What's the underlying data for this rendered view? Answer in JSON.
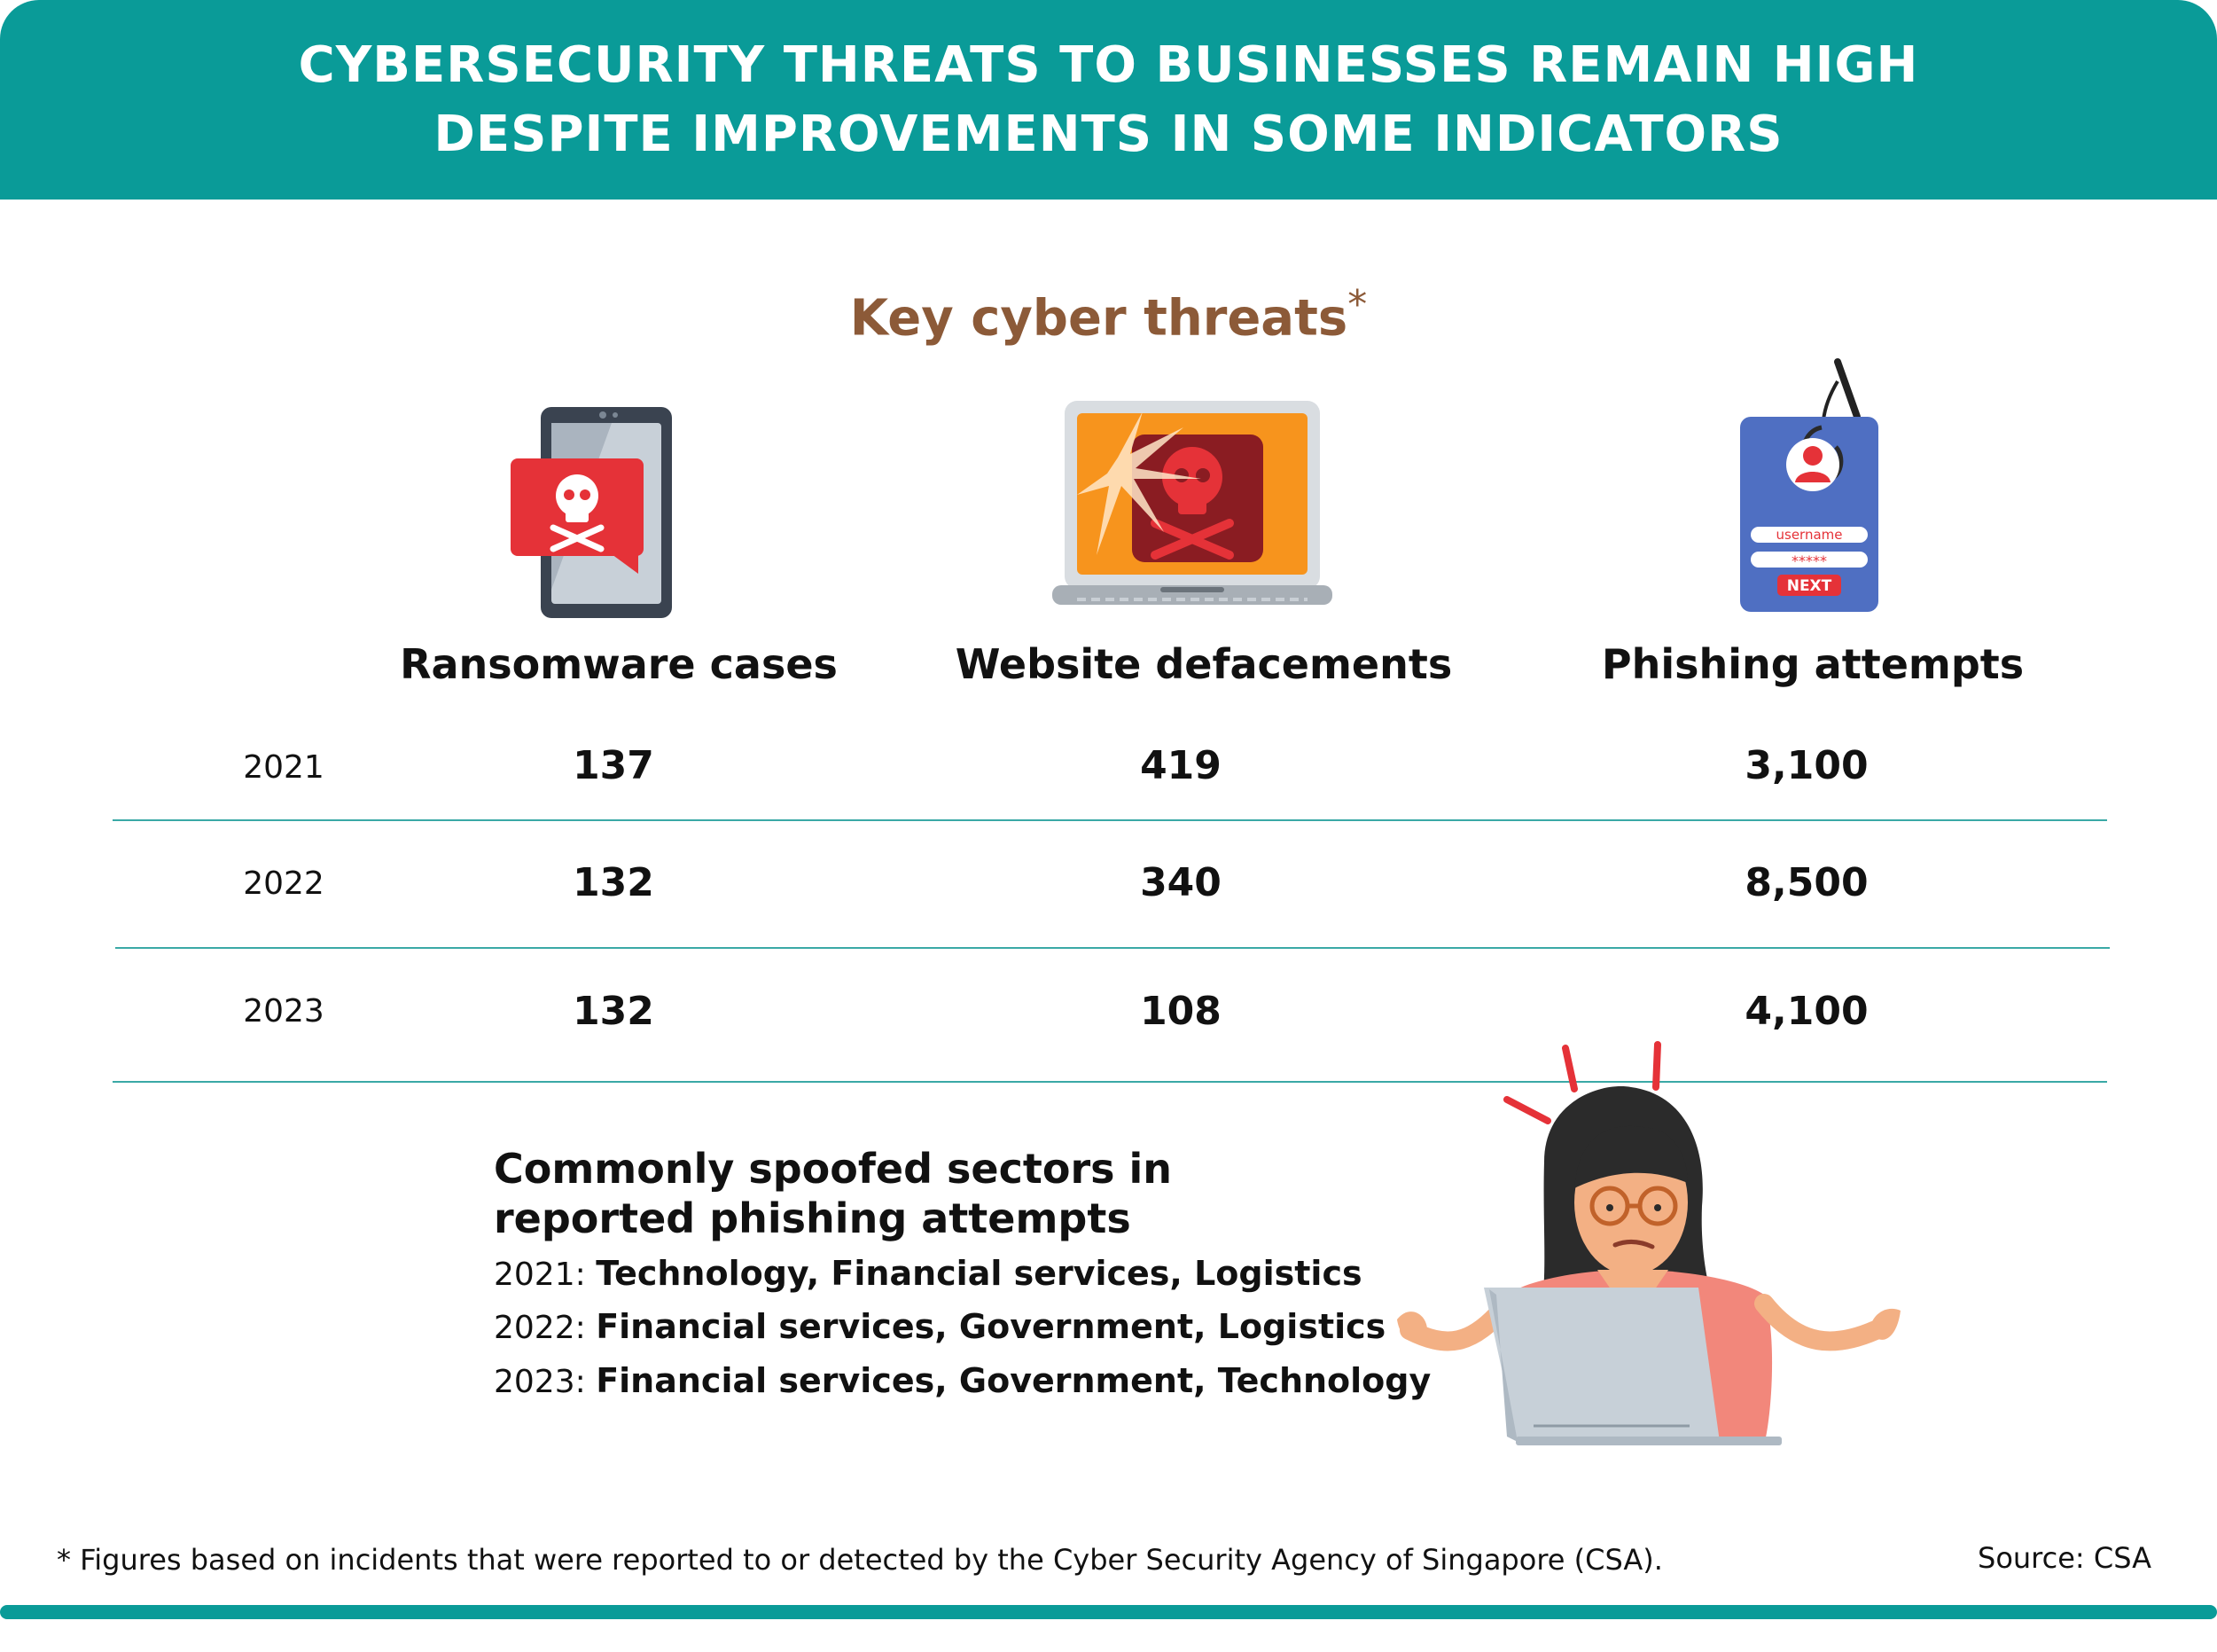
{
  "header": {
    "title_line1": "CYBERSECURITY THREATS TO BUSINESSES REMAIN HIGH",
    "title_line2": "DESPITE IMPROVEMENTS IN SOME INDICATORS"
  },
  "subtitle": {
    "text": "Key cyber threats",
    "mark": "*"
  },
  "icons": {
    "ransomware": "phone-skull-alert-icon",
    "defacement": "laptop-skull-broken-screen-icon",
    "phishing": "login-card-fish-hook-icon",
    "worker": "confused-woman-laptop-illustration",
    "login_username": "username",
    "login_password": "*****",
    "login_button": "NEXT"
  },
  "colors": {
    "teal": "#0a9b98",
    "brown": "#8c5a38",
    "alert_red": "#e53238",
    "orange": "#f7941d",
    "card_blue": "#4f6fc2"
  },
  "chart_data": {
    "type": "table",
    "columns": [
      "Ransomware cases",
      "Website defacements",
      "Phishing attempts"
    ],
    "rows": [
      {
        "year": "2021",
        "values": [
          "137",
          "419",
          "3,100"
        ]
      },
      {
        "year": "2022",
        "values": [
          "132",
          "340",
          "8,500"
        ]
      },
      {
        "year": "2023",
        "values": [
          "132",
          "108",
          "4,100"
        ]
      }
    ]
  },
  "sectors": {
    "title_line1": "Commonly spoofed sectors in",
    "title_line2": "reported phishing attempts",
    "items": [
      {
        "year": "2021:",
        "value": "Technology, Financial services, Logistics"
      },
      {
        "year": "2022:",
        "value": "Financial services, Government, Logistics"
      },
      {
        "year": "2023:",
        "value": "Financial services, Government, Technology"
      }
    ]
  },
  "footnote": "* Figures based on incidents that were reported to or detected by the Cyber Security Agency of Singapore (CSA).",
  "source": "Source: CSA"
}
